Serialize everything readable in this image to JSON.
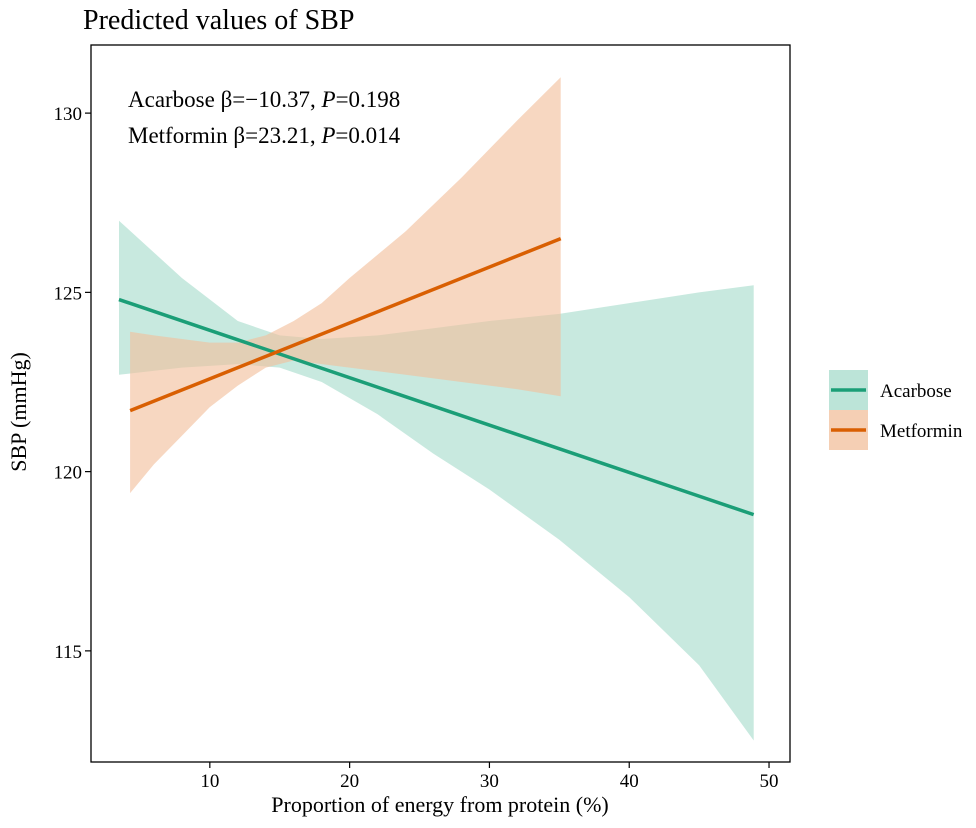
{
  "chart_data": {
    "type": "line",
    "title": "Predicted values of SBP",
    "xlabel": "Proportion of energy from protein (%)",
    "ylabel": "SBP (mmHg)",
    "xlim": [
      1.5,
      51.5
    ],
    "ylim": [
      111.9,
      131.9
    ],
    "xticks": [
      10,
      20,
      30,
      40,
      50
    ],
    "yticks": [
      115,
      120,
      125,
      130
    ],
    "grid": false,
    "legend_position": "right",
    "annotations": [
      {
        "parts": [
          "Acarbose β=−10.37, ",
          "P",
          "=0.198"
        ]
      },
      {
        "parts": [
          "Metformin β=23.21, ",
          "P",
          "=0.014"
        ]
      }
    ],
    "series": [
      {
        "name": "Acarbose",
        "color": "#1b9e77",
        "band_color": "#a6dbcb",
        "x": [
          3.5,
          48.9
        ],
        "y": [
          124.8,
          118.8
        ],
        "ci_x": [
          3.5,
          8,
          12,
          15,
          18,
          22,
          26,
          30,
          35,
          40,
          45,
          48.9
        ],
        "ci_lower": [
          122.7,
          122.9,
          123.0,
          122.9,
          122.5,
          121.6,
          120.5,
          119.5,
          118.1,
          116.5,
          114.6,
          112.5
        ],
        "ci_upper": [
          127.0,
          125.4,
          124.2,
          123.8,
          123.7,
          123.8,
          124.0,
          124.2,
          124.4,
          124.7,
          125.0,
          125.2
        ]
      },
      {
        "name": "Metformin",
        "color": "#d95f02",
        "band_color": "#f2bf9b",
        "x": [
          4.3,
          35.1
        ],
        "y": [
          121.7,
          126.5
        ],
        "ci_x": [
          4.3,
          6,
          8,
          10,
          12,
          14,
          16,
          18,
          20,
          24,
          28,
          32,
          35.1
        ],
        "ci_lower": [
          119.4,
          120.2,
          121.0,
          121.8,
          122.4,
          122.9,
          123.1,
          123.0,
          122.9,
          122.7,
          122.5,
          122.3,
          122.1
        ],
        "ci_upper": [
          123.9,
          123.8,
          123.7,
          123.6,
          123.6,
          123.8,
          124.2,
          124.7,
          125.4,
          126.7,
          128.2,
          129.8,
          131.0
        ]
      }
    ]
  }
}
